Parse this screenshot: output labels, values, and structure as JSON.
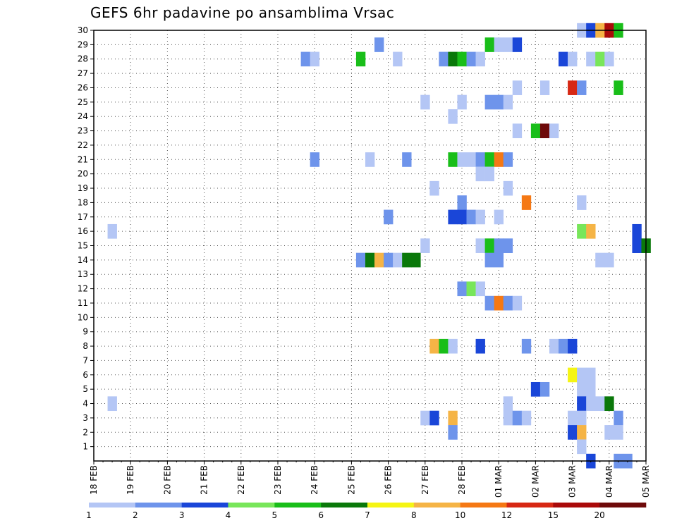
{
  "chart_data": {
    "type": "heatmap",
    "title": "GEFS 6hr padavine po ansamblima Vrsac",
    "x_tick_labels": [
      "18 FEB",
      "19 FEB",
      "20 FEB",
      "21 FEB",
      "22 FEB",
      "23 FEB",
      "24 FEB",
      "25 FEB",
      "26 FEB",
      "27 FEB",
      "28 FEB",
      "01 MAR",
      "02 MAR",
      "03 MAR",
      "04 MAR",
      "05 MAR"
    ],
    "x_range_days": [
      0,
      15
    ],
    "y_tick_labels": [
      "1",
      "2",
      "3",
      "4",
      "5",
      "6",
      "7",
      "8",
      "9",
      "10",
      "11",
      "12",
      "13",
      "14",
      "15",
      "16",
      "17",
      "18",
      "19",
      "20",
      "21",
      "22",
      "23",
      "24",
      "25",
      "26",
      "27",
      "28",
      "29",
      "30"
    ],
    "y_range": [
      0,
      30
    ],
    "grid": true,
    "legend_placement": "bottom",
    "legend": {
      "colors": [
        "#b4c6f5",
        "#6e94eb",
        "#1a46d8",
        "#78e65a",
        "#19be19",
        "#0a780a",
        "#f5f514",
        "#f5b446",
        "#f57814",
        "#d72814",
        "#aa0a0a",
        "#6e0a0a"
      ],
      "labels": [
        "1",
        "2",
        "3",
        "4",
        "5",
        "6",
        "7",
        "8",
        "10",
        "12",
        "15",
        "20"
      ]
    },
    "series": [
      {
        "name": "30",
        "cells": [
          [
            13.25,
            1
          ],
          [
            13.5,
            3
          ],
          [
            13.75,
            8
          ],
          [
            14.0,
            11
          ],
          [
            14.25,
            5
          ]
        ]
      },
      {
        "name": "29",
        "cells": [
          [
            7.75,
            2
          ],
          [
            10.75,
            5
          ],
          [
            11.0,
            1
          ],
          [
            11.25,
            1
          ],
          [
            11.5,
            3
          ]
        ]
      },
      {
        "name": "28",
        "cells": [
          [
            5.75,
            2
          ],
          [
            6.0,
            1
          ],
          [
            7.25,
            5
          ],
          [
            8.25,
            1
          ],
          [
            9.5,
            2
          ],
          [
            9.75,
            6
          ],
          [
            10.0,
            5
          ],
          [
            10.25,
            2
          ],
          [
            10.5,
            1
          ],
          [
            12.75,
            3
          ],
          [
            13.0,
            1
          ],
          [
            13.5,
            1
          ],
          [
            13.75,
            4
          ],
          [
            14.0,
            1
          ]
        ]
      },
      {
        "name": "26",
        "cells": [
          [
            11.5,
            1
          ],
          [
            12.25,
            1
          ],
          [
            13.0,
            10
          ],
          [
            13.25,
            2
          ],
          [
            14.25,
            5
          ]
        ]
      },
      {
        "name": "25",
        "cells": [
          [
            9.0,
            1
          ],
          [
            10.0,
            1
          ],
          [
            10.75,
            2
          ],
          [
            11.0,
            2
          ],
          [
            11.25,
            1
          ]
        ]
      },
      {
        "name": "24",
        "cells": [
          [
            9.75,
            1
          ]
        ]
      },
      {
        "name": "23",
        "cells": [
          [
            11.5,
            1
          ],
          [
            12.0,
            5
          ],
          [
            12.25,
            12
          ],
          [
            12.5,
            1
          ]
        ]
      },
      {
        "name": "21",
        "cells": [
          [
            6.0,
            2
          ],
          [
            7.5,
            1
          ],
          [
            8.5,
            2
          ],
          [
            9.75,
            5
          ],
          [
            10.0,
            1
          ],
          [
            10.25,
            1
          ],
          [
            10.5,
            2
          ],
          [
            10.75,
            5
          ],
          [
            11.0,
            9
          ],
          [
            11.25,
            2
          ]
        ]
      },
      {
        "name": "20",
        "cells": [
          [
            10.5,
            1
          ],
          [
            10.75,
            1
          ]
        ]
      },
      {
        "name": "19",
        "cells": [
          [
            9.25,
            1
          ],
          [
            11.25,
            1
          ]
        ]
      },
      {
        "name": "18",
        "cells": [
          [
            10.0,
            2
          ],
          [
            11.75,
            9
          ],
          [
            13.25,
            1
          ]
        ]
      },
      {
        "name": "17",
        "cells": [
          [
            8.0,
            2
          ],
          [
            9.75,
            3
          ],
          [
            10.0,
            3
          ],
          [
            10.25,
            2
          ],
          [
            10.5,
            1
          ],
          [
            11.0,
            1
          ]
        ]
      },
      {
        "name": "16",
        "cells": [
          [
            0.5,
            1
          ],
          [
            13.25,
            4
          ],
          [
            13.5,
            8
          ],
          [
            14.75,
            3
          ]
        ]
      },
      {
        "name": "15",
        "cells": [
          [
            9.0,
            1
          ],
          [
            10.5,
            1
          ],
          [
            10.75,
            5
          ],
          [
            11.0,
            2
          ],
          [
            11.25,
            2
          ],
          [
            14.75,
            3
          ],
          [
            15.0,
            6
          ]
        ]
      },
      {
        "name": "14",
        "cells": [
          [
            7.25,
            2
          ],
          [
            7.5,
            6
          ],
          [
            7.75,
            8
          ],
          [
            8.0,
            2
          ],
          [
            8.25,
            1
          ],
          [
            8.5,
            6
          ],
          [
            8.75,
            6
          ],
          [
            10.75,
            2
          ],
          [
            11.0,
            2
          ],
          [
            13.75,
            1
          ],
          [
            14.0,
            1
          ]
        ]
      },
      {
        "name": "12",
        "cells": [
          [
            10.0,
            2
          ],
          [
            10.25,
            4
          ],
          [
            10.5,
            1
          ]
        ]
      },
      {
        "name": "11",
        "cells": [
          [
            10.75,
            2
          ],
          [
            11.0,
            9
          ],
          [
            11.25,
            2
          ],
          [
            11.5,
            1
          ]
        ]
      },
      {
        "name": "8",
        "cells": [
          [
            9.25,
            8
          ],
          [
            9.5,
            5
          ],
          [
            9.75,
            1
          ],
          [
            10.5,
            3
          ],
          [
            11.75,
            2
          ],
          [
            12.5,
            1
          ],
          [
            12.75,
            2
          ],
          [
            13.0,
            3
          ]
        ]
      },
      {
        "name": "6",
        "cells": [
          [
            13.0,
            7
          ],
          [
            13.25,
            1
          ],
          [
            13.5,
            1
          ]
        ]
      },
      {
        "name": "5",
        "cells": [
          [
            12.0,
            3
          ],
          [
            12.25,
            2
          ],
          [
            13.25,
            1
          ],
          [
            13.5,
            1
          ]
        ]
      },
      {
        "name": "4",
        "cells": [
          [
            0.5,
            1
          ],
          [
            11.25,
            1
          ],
          [
            13.25,
            3
          ],
          [
            13.5,
            1
          ],
          [
            13.75,
            1
          ],
          [
            14.0,
            6
          ]
        ]
      },
      {
        "name": "3",
        "cells": [
          [
            9.0,
            1
          ],
          [
            9.25,
            3
          ],
          [
            9.75,
            8
          ],
          [
            11.25,
            1
          ],
          [
            11.5,
            2
          ],
          [
            11.75,
            1
          ],
          [
            13.0,
            1
          ],
          [
            13.25,
            1
          ],
          [
            14.25,
            2
          ]
        ]
      },
      {
        "name": "2",
        "cells": [
          [
            9.75,
            2
          ],
          [
            13.0,
            3
          ],
          [
            13.25,
            8
          ],
          [
            14.0,
            1
          ],
          [
            14.25,
            1
          ]
        ]
      },
      {
        "name": "1",
        "cells": [
          [
            13.25,
            1
          ]
        ]
      },
      {
        "name": "0",
        "cells": [
          [
            13.5,
            3
          ],
          [
            14.25,
            2
          ],
          [
            14.5,
            2
          ]
        ]
      }
    ]
  }
}
